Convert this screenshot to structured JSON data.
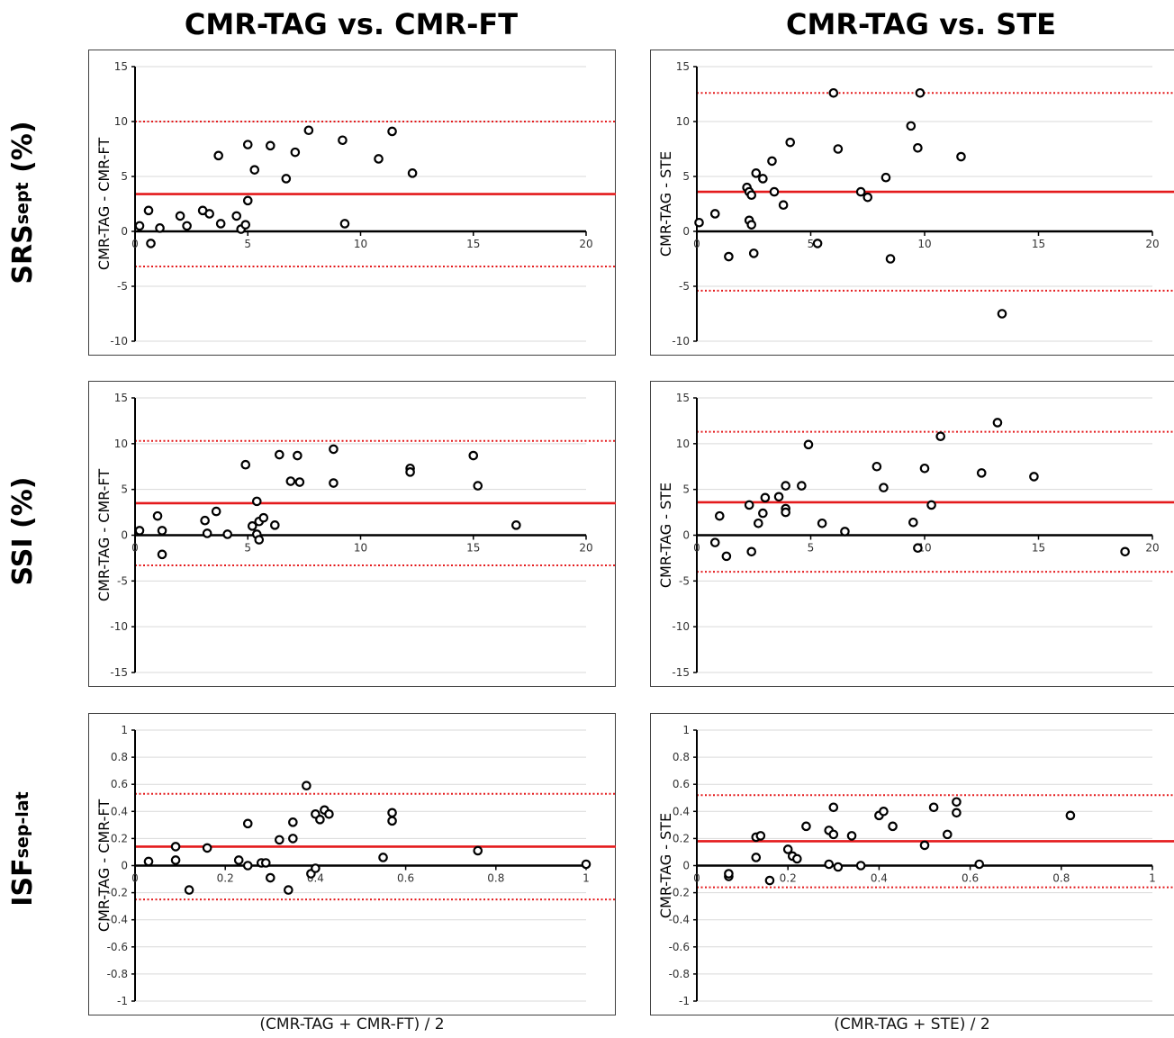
{
  "titles": {
    "col_left": "CMR-TAG vs. CMR-FT",
    "col_right": "CMR-TAG vs. STE",
    "row1_main": "SRS",
    "row1_sub": "sept",
    "row1_suffix": " (%)",
    "row2": "SSI (%)",
    "row3_main": "ISF",
    "row3_sub": "sep-lat",
    "x_left": "(CMR-TAG + CMR-FT) / 2",
    "x_right": "(CMR-TAG + STE) / 2"
  },
  "colors": {
    "mean_line": "#e41a1c",
    "loa_line": "#e41a1c",
    "points": "#000000",
    "grid": "#d9d9d9",
    "axis": "#000000"
  },
  "chart_data": [
    {
      "type": "scatter",
      "ylabel": "CMR-TAG - CMR-FT",
      "xlim": [
        0,
        20
      ],
      "ylim": [
        -10,
        15
      ],
      "yticks": [
        -10,
        -5,
        0,
        5,
        10,
        15
      ],
      "xticks": [
        0,
        5,
        10,
        15,
        20
      ],
      "mean": 3.4,
      "loa": [
        10.0,
        -3.2
      ],
      "points": [
        [
          0.2,
          0.5
        ],
        [
          0.6,
          1.9
        ],
        [
          0.7,
          -1.1
        ],
        [
          1.1,
          0.3
        ],
        [
          2.0,
          1.4
        ],
        [
          2.3,
          0.5
        ],
        [
          3.0,
          1.9
        ],
        [
          3.3,
          1.6
        ],
        [
          3.7,
          6.9
        ],
        [
          3.8,
          0.7
        ],
        [
          4.5,
          1.4
        ],
        [
          4.7,
          0.2
        ],
        [
          4.9,
          0.6
        ],
        [
          5.0,
          7.9
        ],
        [
          5.0,
          2.8
        ],
        [
          5.3,
          5.6
        ],
        [
          6.0,
          7.8
        ],
        [
          6.7,
          4.8
        ],
        [
          7.1,
          7.2
        ],
        [
          7.7,
          9.2
        ],
        [
          9.2,
          8.3
        ],
        [
          9.3,
          0.7
        ],
        [
          10.8,
          6.6
        ],
        [
          11.4,
          9.1
        ],
        [
          12.3,
          5.3
        ]
      ]
    },
    {
      "type": "scatter",
      "ylabel": "CMR-TAG - STE",
      "xlim": [
        0,
        20
      ],
      "ylim": [
        -10,
        15
      ],
      "yticks": [
        -10,
        -5,
        0,
        5,
        10,
        15
      ],
      "xticks": [
        0,
        5,
        10,
        15,
        20
      ],
      "mean": 3.6,
      "loa": [
        12.6,
        -5.4
      ],
      "points": [
        [
          0.1,
          0.8
        ],
        [
          0.8,
          1.6
        ],
        [
          1.4,
          -2.3
        ],
        [
          2.2,
          4.0
        ],
        [
          2.3,
          3.6
        ],
        [
          2.3,
          1.0
        ],
        [
          2.4,
          0.6
        ],
        [
          2.4,
          3.3
        ],
        [
          2.5,
          -2.0
        ],
        [
          2.6,
          5.3
        ],
        [
          2.9,
          4.8
        ],
        [
          3.3,
          6.4
        ],
        [
          3.4,
          3.6
        ],
        [
          3.8,
          2.4
        ],
        [
          4.1,
          8.1
        ],
        [
          5.3,
          -1.1
        ],
        [
          6.0,
          12.6
        ],
        [
          6.2,
          7.5
        ],
        [
          7.2,
          3.6
        ],
        [
          7.5,
          3.1
        ],
        [
          8.3,
          4.9
        ],
        [
          8.5,
          -2.5
        ],
        [
          9.4,
          9.6
        ],
        [
          9.7,
          7.6
        ],
        [
          9.8,
          12.6
        ],
        [
          11.6,
          6.8
        ],
        [
          13.4,
          -7.5
        ]
      ]
    },
    {
      "type": "scatter",
      "ylabel": "CMR-TAG - CMR-FT",
      "xlim": [
        0,
        20
      ],
      "ylim": [
        -15,
        15
      ],
      "yticks": [
        -15,
        -10,
        -5,
        0,
        5,
        10,
        15
      ],
      "xticks": [
        0,
        5,
        10,
        15,
        20
      ],
      "mean": 3.5,
      "loa": [
        10.3,
        -3.3
      ],
      "points": [
        [
          0.2,
          0.5
        ],
        [
          1.0,
          2.1
        ],
        [
          1.2,
          0.5
        ],
        [
          1.2,
          -2.1
        ],
        [
          3.1,
          1.6
        ],
        [
          3.2,
          0.2
        ],
        [
          3.6,
          2.6
        ],
        [
          4.1,
          0.1
        ],
        [
          4.9,
          7.7
        ],
        [
          5.2,
          1.0
        ],
        [
          5.4,
          3.7
        ],
        [
          5.5,
          1.5
        ],
        [
          5.4,
          0.1
        ],
        [
          5.5,
          -0.5
        ],
        [
          5.7,
          1.9
        ],
        [
          6.2,
          1.1
        ],
        [
          6.4,
          8.8
        ],
        [
          6.9,
          5.9
        ],
        [
          7.2,
          8.7
        ],
        [
          7.3,
          5.8
        ],
        [
          8.8,
          9.4
        ],
        [
          8.8,
          5.7
        ],
        [
          12.2,
          7.3
        ],
        [
          12.2,
          6.9
        ],
        [
          15.0,
          8.7
        ],
        [
          15.2,
          5.4
        ],
        [
          16.9,
          1.1
        ]
      ]
    },
    {
      "type": "scatter",
      "ylabel": "CMR-TAG - STE",
      "xlim": [
        0,
        20
      ],
      "ylim": [
        -15,
        15
      ],
      "yticks": [
        -15,
        -10,
        -5,
        0,
        5,
        10,
        15
      ],
      "xticks": [
        0,
        5,
        10,
        15,
        20
      ],
      "mean": 3.6,
      "loa": [
        11.3,
        -4.0
      ],
      "points": [
        [
          0.8,
          -0.8
        ],
        [
          1.0,
          2.1
        ],
        [
          1.3,
          -2.3
        ],
        [
          2.3,
          3.3
        ],
        [
          2.4,
          -1.8
        ],
        [
          2.7,
          1.3
        ],
        [
          2.9,
          2.4
        ],
        [
          3.0,
          4.1
        ],
        [
          3.6,
          4.2
        ],
        [
          3.9,
          5.4
        ],
        [
          3.9,
          2.9
        ],
        [
          3.9,
          2.5
        ],
        [
          4.6,
          5.4
        ],
        [
          4.9,
          9.9
        ],
        [
          5.5,
          1.3
        ],
        [
          6.5,
          0.4
        ],
        [
          7.9,
          7.5
        ],
        [
          8.2,
          5.2
        ],
        [
          9.5,
          1.4
        ],
        [
          9.7,
          -1.4
        ],
        [
          10.0,
          7.3
        ],
        [
          10.3,
          3.3
        ],
        [
          10.7,
          10.8
        ],
        [
          12.5,
          6.8
        ],
        [
          13.2,
          12.3
        ],
        [
          14.8,
          6.4
        ],
        [
          18.8,
          -1.8
        ]
      ]
    },
    {
      "type": "scatter",
      "ylabel": "CMR-TAG - CMR-FT",
      "xlim": [
        0,
        1
      ],
      "ylim": [
        -1,
        1
      ],
      "yticks": [
        -1,
        -0.8,
        -0.6,
        -0.4,
        -0.2,
        0,
        0.2,
        0.4,
        0.6,
        0.8,
        1
      ],
      "xticks": [
        0,
        0.2,
        0.4,
        0.6,
        0.8,
        1
      ],
      "mean": 0.14,
      "loa": [
        0.53,
        -0.25
      ],
      "points": [
        [
          0.03,
          0.03
        ],
        [
          0.09,
          0.14
        ],
        [
          0.09,
          0.04
        ],
        [
          0.12,
          -0.18
        ],
        [
          0.16,
          0.13
        ],
        [
          0.23,
          0.04
        ],
        [
          0.25,
          0.31
        ],
        [
          0.25,
          0.0
        ],
        [
          0.28,
          0.02
        ],
        [
          0.29,
          0.02
        ],
        [
          0.3,
          -0.09
        ],
        [
          0.32,
          0.19
        ],
        [
          0.34,
          -0.18
        ],
        [
          0.35,
          0.32
        ],
        [
          0.35,
          0.2
        ],
        [
          0.38,
          0.59
        ],
        [
          0.39,
          -0.06
        ],
        [
          0.4,
          -0.02
        ],
        [
          0.4,
          0.38
        ],
        [
          0.41,
          0.34
        ],
        [
          0.42,
          0.41
        ],
        [
          0.43,
          0.38
        ],
        [
          0.55,
          0.06
        ],
        [
          0.57,
          0.39
        ],
        [
          0.57,
          0.33
        ],
        [
          0.76,
          0.11
        ],
        [
          1.0,
          0.01
        ]
      ]
    },
    {
      "type": "scatter",
      "ylabel": "CMR-TAG - STE",
      "xlim": [
        0,
        1
      ],
      "ylim": [
        -1,
        1
      ],
      "yticks": [
        -1,
        -0.8,
        -0.6,
        -0.4,
        -0.2,
        0,
        0.2,
        0.4,
        0.6,
        0.8,
        1
      ],
      "xticks": [
        0,
        0.2,
        0.4,
        0.6,
        0.8,
        1
      ],
      "mean": 0.18,
      "loa": [
        0.52,
        -0.16
      ],
      "points": [
        [
          0.07,
          -0.08
        ],
        [
          0.07,
          -0.06
        ],
        [
          0.13,
          0.21
        ],
        [
          0.13,
          0.06
        ],
        [
          0.14,
          0.22
        ],
        [
          0.16,
          -0.11
        ],
        [
          0.2,
          0.12
        ],
        [
          0.21,
          0.07
        ],
        [
          0.22,
          0.05
        ],
        [
          0.24,
          0.29
        ],
        [
          0.29,
          0.01
        ],
        [
          0.29,
          0.26
        ],
        [
          0.3,
          0.23
        ],
        [
          0.3,
          0.43
        ],
        [
          0.31,
          -0.01
        ],
        [
          0.34,
          0.22
        ],
        [
          0.36,
          0.0
        ],
        [
          0.4,
          0.37
        ],
        [
          0.41,
          0.4
        ],
        [
          0.43,
          0.29
        ],
        [
          0.5,
          0.15
        ],
        [
          0.52,
          0.43
        ],
        [
          0.55,
          0.23
        ],
        [
          0.57,
          0.47
        ],
        [
          0.57,
          0.39
        ],
        [
          0.62,
          0.01
        ],
        [
          0.82,
          0.37
        ]
      ]
    }
  ]
}
